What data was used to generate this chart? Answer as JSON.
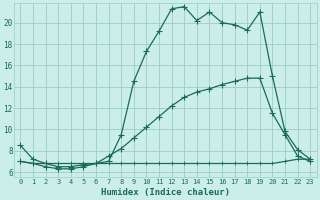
{
  "xlabel": "Humidex (Indice chaleur)",
  "xlim": [
    -0.5,
    23.5
  ],
  "ylim": [
    5.5,
    21.8
  ],
  "yticks": [
    6,
    8,
    10,
    12,
    14,
    16,
    18,
    20
  ],
  "xticks": [
    0,
    1,
    2,
    3,
    4,
    5,
    6,
    7,
    8,
    9,
    10,
    11,
    12,
    13,
    14,
    15,
    16,
    17,
    18,
    19,
    20,
    21,
    22,
    23
  ],
  "bg_color": "#cceee8",
  "line_color": "#1a6b5a",
  "grid_color": "#99cccc",
  "line1_y": [
    8.5,
    7.2,
    6.8,
    6.5,
    6.5,
    6.7,
    6.8,
    7.0,
    9.5,
    14.5,
    17.3,
    19.2,
    21.3,
    21.5,
    20.2,
    21.0,
    20.0,
    19.8,
    19.3,
    21.0,
    15.0,
    9.8,
    8.1,
    7.2
  ],
  "line2_y": [
    7.0,
    6.8,
    6.5,
    6.3,
    6.3,
    6.5,
    6.8,
    7.5,
    8.2,
    9.2,
    10.2,
    11.2,
    12.2,
    13.0,
    13.5,
    13.8,
    14.2,
    14.5,
    14.8,
    14.8,
    11.5,
    9.5,
    7.5,
    7.0
  ],
  "line3_y": [
    7.0,
    6.8,
    6.8,
    6.8,
    6.8,
    6.8,
    6.8,
    6.8,
    6.8,
    6.8,
    6.8,
    6.8,
    6.8,
    6.8,
    6.8,
    6.8,
    6.8,
    6.8,
    6.8,
    6.8,
    6.8,
    7.0,
    7.2,
    7.2
  ]
}
